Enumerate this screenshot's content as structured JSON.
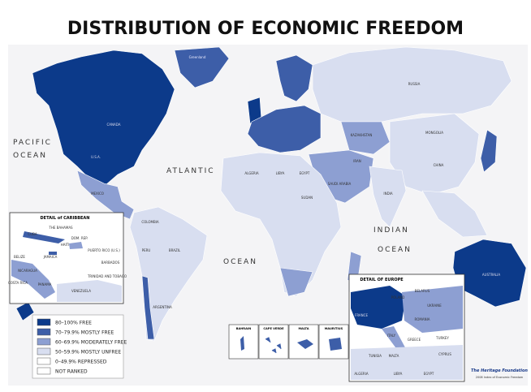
{
  "title": "DISTRIBUTION OF ECONOMIC FREEDOM",
  "ocean_labels": [
    "PACIFIC",
    "OCEAN",
    "ATLANTIC",
    "OCEAN",
    "INDIAN",
    "OCEAN"
  ],
  "country_labels": [
    "CANADA",
    "U.S.A.",
    "MEXICO",
    "BRAZIL",
    "RUSSIA",
    "CHINA",
    "INDIA",
    "AUSTRALIA",
    "Greenland",
    "ALGERIA",
    "LIBYA",
    "EGYPT",
    "SUDAN",
    "SAUDI ARABIA",
    "IRAN",
    "MONGOLIA",
    "KAZAKHSTAN",
    "ARGENTINA",
    "PERU",
    "COLOMBIA"
  ],
  "legend": [
    {
      "label": "80–100% FREE",
      "color": "#0c3a8a"
    },
    {
      "label": "70–79.9% MOSTLY FREE",
      "color": "#3d5ea8"
    },
    {
      "label": "60–69.9% MODERATELY FREE",
      "color": "#8d9fd2"
    },
    {
      "label": "50–59.9% MOSTLY UNFREE",
      "color": "#d8def0"
    },
    {
      "label": "0–49.9% REPRESSED",
      "color": "#ffffff"
    },
    {
      "label": "NOT RANKED",
      "color": "#ffffff"
    }
  ],
  "caribbean": {
    "title": "DETAIL of CARIBBEAN",
    "labels": [
      "THE BAHAMAS",
      "CUBA",
      "DOM. REP.",
      "HAITI",
      "JAMAICA",
      "PUERTO RICO (U.S.)",
      "BARBADOS",
      "BELIZE",
      "NICARAGUA",
      "COSTA RICA",
      "PANAMA",
      "VENEZUELA",
      "TRINIDAD AND TOBAGO"
    ]
  },
  "europe": {
    "title": "DETAIL OF EUROPE",
    "labels": [
      "POLAND",
      "BELARUS",
      "UKRAINE",
      "FRANCE",
      "ROMANIA",
      "ITALY",
      "GREECE",
      "TURKEY",
      "TUNISIA",
      "MALTA",
      "CYPRUS",
      "ALGERIA",
      "LIBYA",
      "EGYPT"
    ]
  },
  "small_insets": [
    "BAHRAIN",
    "CAPE VERDE",
    "MALTA",
    "MAURITIUS"
  ],
  "footer": {
    "org": "The Heritage Foundation",
    "caption": "2008 Index of Economic Freedom"
  }
}
